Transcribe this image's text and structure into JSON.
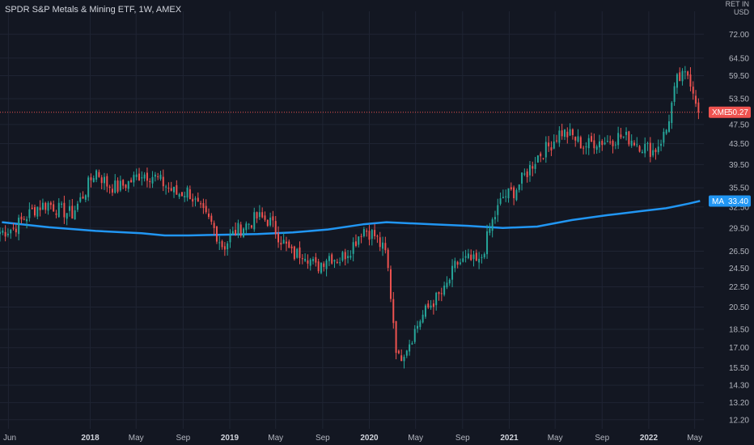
{
  "header": {
    "title": "SPDR S&P Metals & Mining ETF, 1W, AMEX",
    "unit_top": "RET IN",
    "unit": "USD"
  },
  "colors": {
    "background": "#131722",
    "grid": "#1f2433",
    "up": "#26a69a",
    "down": "#ef5350",
    "ma": "#2196f3",
    "price_line": "#ef5350"
  },
  "chart_data": {
    "type": "candlestick",
    "scale": "log",
    "ylim": [
      11.7,
      80
    ],
    "y_ticks": [
      72.0,
      64.5,
      59.5,
      53.5,
      47.5,
      43.5,
      39.5,
      35.5,
      32.5,
      29.5,
      26.5,
      24.5,
      22.5,
      20.5,
      18.5,
      17.0,
      15.5,
      14.3,
      13.2,
      12.2
    ],
    "y_tick_labels": [
      "72.00",
      "64.50",
      "59.50",
      "53.50",
      "47.50",
      "43.50",
      "39.50",
      "35.50",
      "32.50",
      "29.50",
      "26.50",
      "24.50",
      "22.50",
      "20.50",
      "18.50",
      "17.00",
      "15.50",
      "14.30",
      "13.20",
      "12.20"
    ],
    "x_ticks": [
      {
        "label": "Jun",
        "date": "2017-06",
        "bold": false
      },
      {
        "label": "2018",
        "date": "2018-01",
        "bold": true
      },
      {
        "label": "May",
        "date": "2018-05",
        "bold": false
      },
      {
        "label": "Sep",
        "date": "2018-09",
        "bold": false
      },
      {
        "label": "2019",
        "date": "2019-01",
        "bold": true
      },
      {
        "label": "May",
        "date": "2019-05",
        "bold": false
      },
      {
        "label": "Sep",
        "date": "2019-09",
        "bold": false
      },
      {
        "label": "2020",
        "date": "2020-01",
        "bold": true
      },
      {
        "label": "May",
        "date": "2020-05",
        "bold": false
      },
      {
        "label": "Sep",
        "date": "2020-09",
        "bold": false
      },
      {
        "label": "2021",
        "date": "2021-01",
        "bold": true
      },
      {
        "label": "May",
        "date": "2021-05",
        "bold": false
      },
      {
        "label": "Sep",
        "date": "2021-09",
        "bold": false
      },
      {
        "label": "2022",
        "date": "2022-01",
        "bold": true
      },
      {
        "label": "May",
        "date": "2022-05",
        "bold": false
      }
    ],
    "price_series": {
      "name": "XME",
      "last": 50.27,
      "last_label": "50.27",
      "points": [
        [
          "2017-05",
          29.0
        ],
        [
          "2017-06",
          29.5
        ],
        [
          "2017-07",
          31.0
        ],
        [
          "2017-08",
          32.5
        ],
        [
          "2017-09",
          33.0
        ],
        [
          "2017-10",
          32.0
        ],
        [
          "2017-11",
          31.5
        ],
        [
          "2017-12",
          34.5
        ],
        [
          "2018-01",
          38.5
        ],
        [
          "2018-02",
          36.0
        ],
        [
          "2018-03",
          35.5
        ],
        [
          "2018-04",
          36.5
        ],
        [
          "2018-05",
          38.0
        ],
        [
          "2018-06",
          37.5
        ],
        [
          "2018-07",
          36.0
        ],
        [
          "2018-08",
          34.5
        ],
        [
          "2018-09",
          35.0
        ],
        [
          "2018-10",
          32.0
        ],
        [
          "2018-11",
          30.0
        ],
        [
          "2018-12",
          27.0
        ],
        [
          "2019-01",
          29.0
        ],
        [
          "2019-02",
          30.0
        ],
        [
          "2019-03",
          31.0
        ],
        [
          "2019-04",
          30.5
        ],
        [
          "2019-05",
          28.0
        ],
        [
          "2019-06",
          26.0
        ],
        [
          "2019-07",
          26.5
        ],
        [
          "2019-08",
          24.5
        ],
        [
          "2019-09",
          26.0
        ],
        [
          "2019-10",
          25.5
        ],
        [
          "2019-11",
          27.0
        ],
        [
          "2019-12",
          29.5
        ],
        [
          "2020-01",
          28.5
        ],
        [
          "2020-02",
          26.0
        ],
        [
          "2020-03",
          16.0
        ],
        [
          "2020-04",
          17.5
        ],
        [
          "2020-05",
          19.5
        ],
        [
          "2020-06",
          21.0
        ],
        [
          "2020-07",
          22.0
        ],
        [
          "2020-08",
          25.0
        ],
        [
          "2020-09",
          25.5
        ],
        [
          "2020-10",
          25.0
        ],
        [
          "2020-11",
          30.0
        ],
        [
          "2020-12",
          34.0
        ],
        [
          "2021-01",
          35.0
        ],
        [
          "2021-02",
          38.0
        ],
        [
          "2021-03",
          41.0
        ],
        [
          "2021-04",
          43.0
        ],
        [
          "2021-05",
          46.0
        ],
        [
          "2021-06",
          45.0
        ],
        [
          "2021-07",
          43.0
        ],
        [
          "2021-08",
          44.0
        ],
        [
          "2021-09",
          44.0
        ],
        [
          "2021-10",
          45.0
        ],
        [
          "2021-11",
          44.5
        ],
        [
          "2021-12",
          43.0
        ],
        [
          "2022-01",
          42.0
        ],
        [
          "2022-02",
          46.0
        ],
        [
          "2022-03",
          58.0
        ],
        [
          "2022-04",
          60.0
        ],
        [
          "2022-05",
          50.27
        ]
      ]
    },
    "ma_series": {
      "name": "MA",
      "last": 33.4,
      "last_label": "33.40",
      "points": [
        [
          "2017-05",
          30.3
        ],
        [
          "2017-09",
          29.6
        ],
        [
          "2018-01",
          29.1
        ],
        [
          "2018-05",
          28.8
        ],
        [
          "2018-07",
          28.5
        ],
        [
          "2018-09",
          28.5
        ],
        [
          "2018-12",
          28.6
        ],
        [
          "2019-03",
          28.7
        ],
        [
          "2019-06",
          28.9
        ],
        [
          "2019-09",
          29.3
        ],
        [
          "2019-12",
          30.0
        ],
        [
          "2020-02",
          30.3
        ],
        [
          "2020-06",
          30.0
        ],
        [
          "2020-09",
          29.8
        ],
        [
          "2020-12",
          29.5
        ],
        [
          "2021-03",
          29.7
        ],
        [
          "2021-06",
          30.6
        ],
        [
          "2021-09",
          31.3
        ],
        [
          "2021-12",
          31.9
        ],
        [
          "2022-02",
          32.3
        ],
        [
          "2022-04",
          33.0
        ],
        [
          "2022-05",
          33.4
        ]
      ]
    }
  }
}
